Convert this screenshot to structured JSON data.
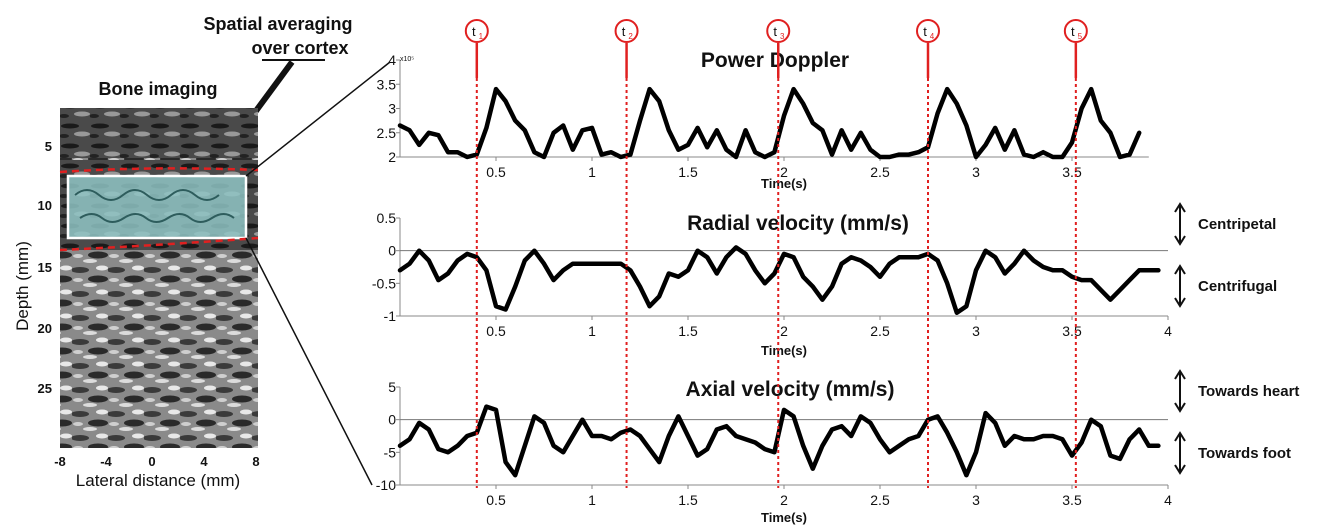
{
  "image_panel": {
    "title": "Bone imaging",
    "callout": [
      "Spatial averaging",
      "over cortex"
    ],
    "xlabel": "Lateral distance (mm)",
    "ylabel": "Depth (mm)",
    "xticks": [
      "-8",
      "-4",
      "0",
      "4",
      "8"
    ],
    "yticks": [
      "5",
      "10",
      "15",
      "20",
      "25"
    ],
    "roi_fill": "#8fc4c4",
    "cortex_line_color": "#e02020"
  },
  "markers": {
    "labels": [
      "t1",
      "t2",
      "t3",
      "t4",
      "t5"
    ],
    "subscripts": [
      "1",
      "2",
      "3",
      "4",
      "5"
    ],
    "times": [
      0.4,
      1.18,
      1.97,
      2.75,
      3.52
    ],
    "color": "#e02020"
  },
  "chart_data": [
    {
      "type": "line",
      "title": "Power Doppler",
      "xlabel": "Time(s)",
      "ylabel": "",
      "y_exponent": "x10⁵",
      "xlim": [
        0,
        3.9
      ],
      "ylim": [
        2,
        4
      ],
      "xticks": [
        "0.5",
        "1",
        "1.5",
        "2",
        "2.5",
        "3",
        "3.5"
      ],
      "xtick_values": [
        0.5,
        1,
        1.5,
        2,
        2.5,
        3,
        3.5
      ],
      "yticks": [
        "2",
        "2.5",
        "3",
        "3.5",
        "4"
      ],
      "ytick_values": [
        2,
        2.5,
        3,
        3.5,
        4
      ],
      "series": [
        {
          "x": [
            0.0,
            0.05,
            0.1,
            0.15,
            0.2,
            0.25,
            0.3,
            0.35,
            0.4,
            0.45,
            0.5,
            0.55,
            0.6,
            0.65,
            0.7,
            0.75,
            0.8,
            0.85,
            0.9,
            0.95,
            1.0,
            1.05,
            1.1,
            1.15,
            1.2,
            1.25,
            1.3,
            1.35,
            1.4,
            1.45,
            1.5,
            1.55,
            1.6,
            1.65,
            1.7,
            1.75,
            1.8,
            1.85,
            1.9,
            1.95,
            2.0,
            2.05,
            2.1,
            2.15,
            2.2,
            2.25,
            2.3,
            2.35,
            2.4,
            2.45,
            2.5,
            2.55,
            2.6,
            2.65,
            2.7,
            2.75,
            2.8,
            2.85,
            2.9,
            2.95,
            3.0,
            3.05,
            3.1,
            3.15,
            3.2,
            3.25,
            3.3,
            3.35,
            3.4,
            3.45,
            3.5,
            3.55,
            3.6,
            3.65,
            3.7,
            3.75,
            3.8,
            3.85
          ],
          "y": [
            2.65,
            2.55,
            2.25,
            2.5,
            2.45,
            2.1,
            2.1,
            2.0,
            2.05,
            2.6,
            3.4,
            3.15,
            2.75,
            2.55,
            2.1,
            2.0,
            2.5,
            2.65,
            2.15,
            2.55,
            2.6,
            2.05,
            2.1,
            2.0,
            2.05,
            2.75,
            3.4,
            3.15,
            2.55,
            2.15,
            2.25,
            2.6,
            2.2,
            2.55,
            2.15,
            2.0,
            2.55,
            2.1,
            2.0,
            2.1,
            2.85,
            3.4,
            3.1,
            2.7,
            2.55,
            2.05,
            2.55,
            2.15,
            2.5,
            2.15,
            2.0,
            2.0,
            2.05,
            2.05,
            2.1,
            2.2,
            2.9,
            3.4,
            3.1,
            2.65,
            2.0,
            2.25,
            2.6,
            2.15,
            2.55,
            2.05,
            2.0,
            2.1,
            2.0,
            2.0,
            2.3,
            3.0,
            3.4,
            2.75,
            2.5,
            2.0,
            2.05,
            2.5
          ]
        }
      ]
    },
    {
      "type": "line",
      "title": "Radial velocity (mm/s)",
      "xlabel": "Time(s)",
      "ylabel": "",
      "xlim": [
        0,
        4
      ],
      "ylim": [
        -1,
        0.5
      ],
      "xticks": [
        "0.5",
        "1",
        "1.5",
        "2",
        "2.5",
        "3",
        "3.5",
        "4"
      ],
      "xtick_values": [
        0.5,
        1,
        1.5,
        2,
        2.5,
        3,
        3.5,
        4
      ],
      "yticks": [
        "-1",
        "-0.5",
        "0",
        "0.5"
      ],
      "ytick_values": [
        -1,
        -0.5,
        0,
        0.5
      ],
      "side_labels": [
        "Centripetal",
        "Centrifugal"
      ],
      "series": [
        {
          "x": [
            0.0,
            0.05,
            0.1,
            0.15,
            0.2,
            0.25,
            0.3,
            0.35,
            0.4,
            0.45,
            0.5,
            0.55,
            0.6,
            0.65,
            0.7,
            0.75,
            0.8,
            0.85,
            0.9,
            0.95,
            1.0,
            1.05,
            1.1,
            1.15,
            1.2,
            1.25,
            1.3,
            1.35,
            1.4,
            1.45,
            1.5,
            1.55,
            1.6,
            1.65,
            1.7,
            1.75,
            1.8,
            1.85,
            1.9,
            1.95,
            2.0,
            2.05,
            2.1,
            2.15,
            2.2,
            2.25,
            2.3,
            2.35,
            2.4,
            2.45,
            2.5,
            2.55,
            2.6,
            2.65,
            2.7,
            2.75,
            2.8,
            2.85,
            2.9,
            2.95,
            3.0,
            3.05,
            3.1,
            3.15,
            3.2,
            3.25,
            3.3,
            3.35,
            3.4,
            3.45,
            3.5,
            3.55,
            3.6,
            3.65,
            3.7,
            3.75,
            3.8,
            3.85,
            3.9,
            3.95
          ],
          "y": [
            -0.3,
            -0.2,
            0.0,
            -0.15,
            -0.45,
            -0.35,
            -0.15,
            -0.05,
            -0.1,
            -0.3,
            -0.85,
            -0.9,
            -0.55,
            -0.15,
            0.0,
            -0.2,
            -0.45,
            -0.3,
            -0.2,
            -0.2,
            -0.2,
            -0.2,
            -0.2,
            -0.2,
            -0.3,
            -0.55,
            -0.85,
            -0.7,
            -0.35,
            -0.4,
            -0.3,
            0.0,
            -0.1,
            -0.35,
            -0.1,
            0.05,
            -0.05,
            -0.3,
            -0.5,
            -0.35,
            -0.05,
            -0.1,
            -0.4,
            -0.55,
            -0.75,
            -0.55,
            -0.2,
            -0.1,
            -0.15,
            -0.25,
            -0.4,
            -0.2,
            -0.1,
            -0.1,
            -0.1,
            -0.05,
            -0.15,
            -0.5,
            -0.95,
            -0.85,
            -0.3,
            0.0,
            -0.1,
            -0.35,
            -0.2,
            0.0,
            -0.15,
            -0.25,
            -0.3,
            -0.3,
            -0.4,
            -0.45,
            -0.45,
            -0.6,
            -0.75,
            -0.6,
            -0.45,
            -0.3,
            -0.3,
            -0.3
          ]
        }
      ]
    },
    {
      "type": "line",
      "title": "Axial velocity (mm/s)",
      "xlabel": "Time(s)",
      "ylabel": "",
      "xlim": [
        0,
        4
      ],
      "ylim": [
        -10,
        5
      ],
      "xticks": [
        "0.5",
        "1",
        "1.5",
        "2",
        "2.5",
        "3",
        "3.5",
        "4"
      ],
      "xtick_values": [
        0.5,
        1,
        1.5,
        2,
        2.5,
        3,
        3.5,
        4
      ],
      "yticks": [
        "-10",
        "-5",
        "0",
        "5"
      ],
      "ytick_values": [
        -10,
        -5,
        0,
        5
      ],
      "side_labels": [
        "Towards heart",
        "Towards foot"
      ],
      "series": [
        {
          "x": [
            0.0,
            0.05,
            0.1,
            0.15,
            0.2,
            0.25,
            0.3,
            0.35,
            0.4,
            0.45,
            0.5,
            0.55,
            0.6,
            0.65,
            0.7,
            0.75,
            0.8,
            0.85,
            0.9,
            0.95,
            1.0,
            1.05,
            1.1,
            1.15,
            1.2,
            1.25,
            1.3,
            1.35,
            1.4,
            1.45,
            1.5,
            1.55,
            1.6,
            1.65,
            1.7,
            1.75,
            1.8,
            1.85,
            1.9,
            1.95,
            2.0,
            2.05,
            2.1,
            2.15,
            2.2,
            2.25,
            2.3,
            2.35,
            2.4,
            2.45,
            2.5,
            2.55,
            2.6,
            2.65,
            2.7,
            2.75,
            2.8,
            2.85,
            2.9,
            2.95,
            3.0,
            3.05,
            3.1,
            3.15,
            3.2,
            3.25,
            3.3,
            3.35,
            3.4,
            3.45,
            3.5,
            3.55,
            3.6,
            3.65,
            3.7,
            3.75,
            3.8,
            3.85,
            3.9,
            3.95
          ],
          "y": [
            -4.0,
            -3.0,
            -0.5,
            -1.5,
            -4.5,
            -5.0,
            -4.0,
            -2.5,
            -2.0,
            2.0,
            1.5,
            -6.5,
            -8.5,
            -4.0,
            0.5,
            -0.5,
            -4.0,
            -5.0,
            -2.5,
            0.0,
            -2.5,
            -2.5,
            -3.0,
            -2.0,
            -1.5,
            -2.5,
            -4.5,
            -6.5,
            -2.5,
            0.5,
            -2.5,
            -5.5,
            -4.5,
            -1.5,
            -1.0,
            -2.5,
            -3.0,
            -3.5,
            -4.5,
            -5.0,
            1.5,
            0.5,
            -4.0,
            -7.5,
            -4.0,
            -1.5,
            -1.0,
            -2.5,
            0.5,
            -0.5,
            -3.0,
            -5.0,
            -4.0,
            -3.0,
            -2.5,
            0.0,
            0.5,
            -2.0,
            -5.0,
            -8.5,
            -5.0,
            1.0,
            -0.5,
            -4.0,
            -2.5,
            -3.0,
            -3.0,
            -2.5,
            -2.5,
            -3.0,
            -5.5,
            -3.5,
            0.0,
            -1.0,
            -5.5,
            -6.0,
            -3.0,
            -1.5,
            -4.0,
            -4.0
          ]
        }
      ]
    }
  ]
}
